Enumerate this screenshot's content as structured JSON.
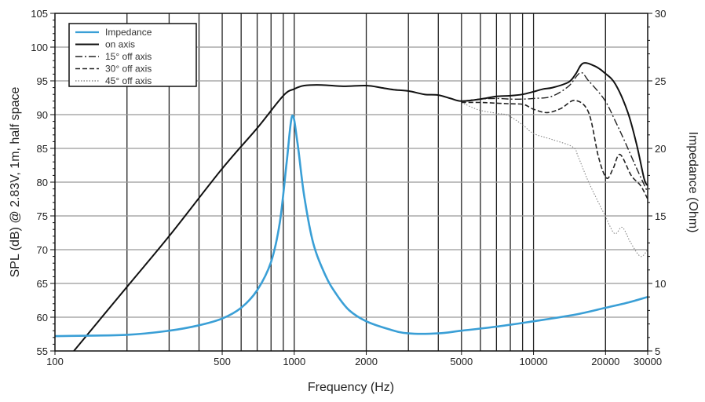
{
  "chart_data": {
    "type": "line",
    "title": "",
    "xlabel": "Frequency (Hz)",
    "ylabel": "SPL (dB) @ 2.83V, 1m, half space",
    "y2label": "Impedance (Ohm)",
    "xscale": "log",
    "xlim": [
      100,
      30000
    ],
    "ylim": [
      55,
      105
    ],
    "y2lim": [
      5,
      30
    ],
    "grid": true,
    "legend_position": "top-left",
    "x_tick_labels": [
      "100",
      "500",
      "1000",
      "2000",
      "5000",
      "10000",
      "20000",
      "30000"
    ],
    "y_tick_labels": [
      "55",
      "60",
      "65",
      "70",
      "75",
      "80",
      "85",
      "90",
      "95",
      "100",
      "105"
    ],
    "y2_tick_labels": [
      "5",
      "10",
      "15",
      "20",
      "25",
      "30"
    ],
    "series": [
      {
        "name": "Impedance",
        "axis": "right",
        "color": "#3a9fd6",
        "style": "solid",
        "x": [
          100,
          200,
          300,
          400,
          500,
          600,
          700,
          800,
          870,
          930,
          980,
          1030,
          1100,
          1200,
          1350,
          1500,
          1700,
          2000,
          2500,
          3000,
          4000,
          5000,
          7000,
          10000,
          15000,
          20000,
          25000,
          30000
        ],
        "y": [
          6.1,
          6.2,
          6.5,
          6.9,
          7.4,
          8.2,
          9.5,
          11.6,
          14.5,
          19.0,
          22.4,
          20.5,
          16.5,
          13.0,
          10.6,
          9.2,
          8.0,
          7.2,
          6.6,
          6.3,
          6.3,
          6.5,
          6.8,
          7.2,
          7.7,
          8.2,
          8.6,
          9.0
        ]
      },
      {
        "name": "on axis",
        "axis": "left",
        "color": "#111111",
        "style": "solid",
        "x": [
          100,
          120,
          200,
          300,
          500,
          700,
          900,
          1000,
          1100,
          1300,
          1600,
          2000,
          2300,
          2600,
          3000,
          3500,
          4000,
          4500,
          5000,
          6000,
          7000,
          8000,
          9000,
          10000,
          11000,
          12000,
          14000,
          15000,
          16100,
          18000,
          19800,
          22000,
          24800,
          27000,
          29000,
          30000
        ],
        "y": [
          51.5,
          55,
          64.5,
          72,
          82,
          88,
          92.8,
          93.8,
          94.3,
          94.4,
          94.2,
          94.3,
          94.0,
          93.7,
          93.5,
          93.0,
          92.9,
          92.4,
          92.0,
          92.3,
          92.7,
          92.8,
          93.0,
          93.4,
          93.8,
          94.0,
          94.8,
          96.0,
          97.6,
          97.2,
          96.2,
          94.5,
          90.3,
          85.5,
          80.5,
          79.5
        ]
      },
      {
        "name": "15° off axis",
        "axis": "left",
        "color": "#222222",
        "style": "dashdot",
        "x": [
          5000,
          6000,
          7000,
          8000,
          9000,
          10000,
          11900,
          14000,
          15700,
          17000,
          19800,
          22000,
          24300,
          27000,
          30000
        ],
        "y": [
          92.0,
          92.3,
          92.4,
          92.3,
          92.3,
          92.4,
          92.7,
          94.2,
          96.2,
          95.0,
          92.2,
          89.0,
          85.7,
          82.0,
          78.5
        ]
      },
      {
        "name": "30° off axis",
        "axis": "left",
        "color": "#222222",
        "style": "dashed",
        "x": [
          5000,
          6000,
          7000,
          8000,
          9100,
          10000,
          11400,
          13000,
          14900,
          17000,
          18700,
          20200,
          21500,
          23000,
          25600,
          28000,
          30000
        ],
        "y": [
          91.8,
          91.8,
          91.7,
          91.6,
          91.5,
          90.8,
          90.3,
          90.9,
          92.1,
          90.3,
          83.7,
          80.6,
          82.0,
          84.1,
          81.0,
          79.5,
          77.5
        ]
      },
      {
        "name": "45° off axis",
        "axis": "left",
        "color": "#888888",
        "style": "dotted",
        "x": [
          5000,
          5900,
          7000,
          7800,
          9000,
          10000,
          12000,
          14600,
          15400,
          17000,
          19800,
          21800,
          23500,
          25500,
          28000,
          30000
        ],
        "y": [
          91.8,
          90.7,
          90.2,
          89.9,
          88.5,
          87.2,
          86.3,
          85.2,
          83.7,
          80.0,
          75.2,
          72.4,
          73.3,
          71.0,
          69.0,
          70.0
        ]
      }
    ]
  }
}
